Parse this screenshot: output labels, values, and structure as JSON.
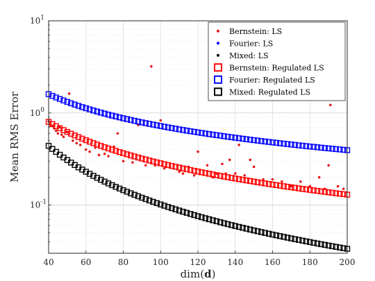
{
  "chart_data": {
    "type": "scatter",
    "title": "",
    "xlabel": "dim(d)",
    "ylabel": "Mean RMS Error",
    "xlim": [
      40,
      200
    ],
    "ylim": [
      0.03,
      10
    ],
    "yscale": "log",
    "grid": true,
    "legend_position": "top-right",
    "x_ticks": [
      40,
      60,
      80,
      100,
      120,
      140,
      160,
      180,
      200
    ],
    "y_ticks": [
      {
        "value": 0.1,
        "base": "10",
        "exp": "-1"
      },
      {
        "value": 1,
        "base": "10",
        "exp": "0"
      },
      {
        "value": 10,
        "base": "10",
        "exp": "1"
      }
    ],
    "series": [
      {
        "name": "Bernstein: LS",
        "marker": "dot",
        "color": "#e31a1c",
        "x": [
          40,
          41,
          42,
          43,
          44,
          45,
          46,
          47,
          48,
          50,
          51,
          53,
          55,
          57,
          60,
          62,
          65,
          67,
          70,
          72,
          75,
          77,
          80,
          85,
          88,
          92,
          95,
          97,
          100,
          102,
          105,
          110,
          112,
          115,
          118,
          120,
          125,
          128,
          130,
          133,
          135,
          137,
          140,
          142,
          145,
          148,
          150,
          155,
          160,
          165,
          170,
          175,
          180,
          185,
          188,
          190,
          191,
          195,
          198
        ],
        "y": [
          0.81,
          0.75,
          0.72,
          0.68,
          0.64,
          0.6,
          0.7,
          0.58,
          0.55,
          0.62,
          1.62,
          0.5,
          0.47,
          0.45,
          0.4,
          0.38,
          0.42,
          0.35,
          0.36,
          0.34,
          0.43,
          0.6,
          0.3,
          0.29,
          0.74,
          0.27,
          3.2,
          0.27,
          0.83,
          0.25,
          0.26,
          0.23,
          0.22,
          0.26,
          0.21,
          0.38,
          0.27,
          0.2,
          0.22,
          0.28,
          0.22,
          0.31,
          0.22,
          0.45,
          0.21,
          0.31,
          0.26,
          0.19,
          0.19,
          0.18,
          0.16,
          0.18,
          0.16,
          0.2,
          0.15,
          0.27,
          1.22,
          0.16,
          0.15
        ]
      },
      {
        "name": "Fourier: LS",
        "marker": "dot",
        "color": "#0000ff"
      },
      {
        "name": "Mixed: LS",
        "marker": "dot",
        "color": "#000000"
      },
      {
        "name": "Bernstein: Regulated LS",
        "marker": "square",
        "color": "#ff0000",
        "formula": {
          "a": 0.8,
          "b": -1.13
        }
      },
      {
        "name": "Fourier: Regulated LS",
        "marker": "square",
        "color": "#0000ff",
        "formula": {
          "a": 1.6,
          "b": -0.87
        }
      },
      {
        "name": "Mixed: Regulated LS",
        "marker": "square",
        "color": "#000000",
        "formula": {
          "a": 0.44,
          "b": -1.6
        }
      }
    ],
    "regulated_x_range": [
      40,
      200
    ]
  }
}
